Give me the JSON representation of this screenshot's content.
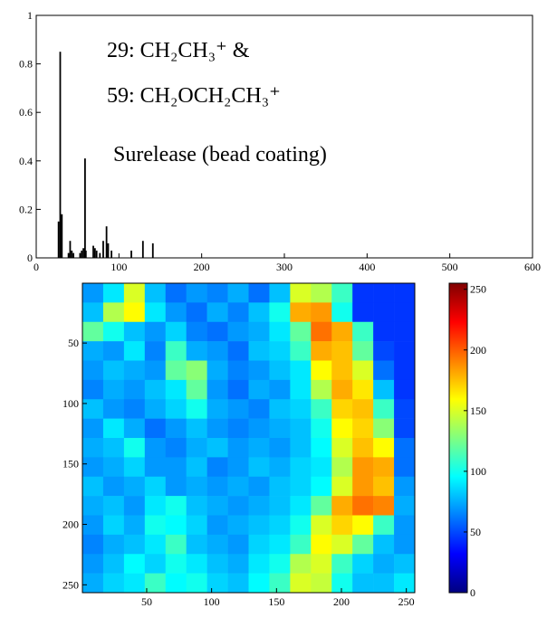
{
  "chart_data": [
    {
      "type": "bar",
      "annotations": [
        "29: CH₂CH₃⁺ &",
        "59: CH₂OCH₂CH₃⁺",
        "Surelease (bead coating)"
      ],
      "x": [
        27,
        29,
        30,
        31,
        39,
        41,
        43,
        45,
        53,
        55,
        57,
        59,
        60,
        69,
        71,
        73,
        77,
        81,
        85,
        87,
        91,
        115,
        129,
        141
      ],
      "values": [
        0.15,
        0.85,
        0.17,
        0.18,
        0.02,
        0.07,
        0.03,
        0.02,
        0.02,
        0.03,
        0.04,
        0.41,
        0.03,
        0.05,
        0.04,
        0.03,
        0.02,
        0.07,
        0.13,
        0.06,
        0.03,
        0.03,
        0.07,
        0.06
      ],
      "color": "#000000",
      "xlim": [
        0,
        600
      ],
      "xticks": [
        0,
        100,
        200,
        300,
        400,
        500,
        600
      ],
      "ylim": [
        0,
        1
      ],
      "yticks": [
        0,
        0.2,
        0.4,
        0.6,
        0.8,
        1
      ]
    },
    {
      "type": "heatmap",
      "colormap": "jet",
      "xlim": [
        0.5,
        256.5
      ],
      "xticks": [
        50,
        100,
        150,
        200,
        250
      ],
      "ylim": [
        256.5,
        0.5
      ],
      "yticks": [
        50,
        100,
        150,
        200,
        250
      ],
      "clim": [
        0,
        255
      ],
      "cticks": [
        0,
        50,
        100,
        150,
        200,
        250
      ],
      "z": [
        [
          70,
          90,
          150,
          80,
          60,
          70,
          65,
          75,
          60,
          80,
          150,
          140,
          110,
          45,
          45,
          45
        ],
        [
          80,
          140,
          160,
          90,
          70,
          60,
          75,
          65,
          80,
          100,
          180,
          185,
          100,
          45,
          45,
          45
        ],
        [
          120,
          100,
          80,
          70,
          85,
          65,
          60,
          70,
          75,
          90,
          120,
          195,
          180,
          110,
          45,
          45
        ],
        [
          75,
          70,
          90,
          65,
          110,
          75,
          70,
          60,
          80,
          85,
          110,
          180,
          175,
          120,
          50,
          45
        ],
        [
          70,
          80,
          75,
          70,
          120,
          130,
          75,
          65,
          70,
          80,
          90,
          160,
          175,
          150,
          60,
          45
        ],
        [
          65,
          75,
          70,
          80,
          90,
          120,
          70,
          60,
          75,
          70,
          90,
          140,
          180,
          165,
          80,
          45
        ],
        [
          80,
          70,
          65,
          75,
          85,
          100,
          75,
          70,
          65,
          80,
          85,
          110,
          170,
          175,
          110,
          50
        ],
        [
          70,
          90,
          75,
          60,
          70,
          80,
          70,
          65,
          70,
          75,
          80,
          100,
          160,
          170,
          130,
          50
        ],
        [
          75,
          80,
          100,
          70,
          65,
          75,
          80,
          70,
          75,
          70,
          80,
          95,
          150,
          175,
          160,
          60
        ],
        [
          70,
          75,
          85,
          70,
          70,
          80,
          65,
          70,
          80,
          75,
          85,
          90,
          140,
          185,
          180,
          60
        ],
        [
          80,
          70,
          75,
          85,
          70,
          75,
          70,
          75,
          70,
          80,
          85,
          95,
          150,
          185,
          175,
          70
        ],
        [
          75,
          80,
          70,
          90,
          100,
          80,
          75,
          70,
          75,
          80,
          90,
          120,
          180,
          195,
          190,
          75
        ],
        [
          70,
          85,
          75,
          100,
          95,
          85,
          70,
          75,
          80,
          85,
          100,
          150,
          170,
          160,
          110,
          70
        ],
        [
          65,
          75,
          80,
          90,
          110,
          80,
          75,
          70,
          85,
          90,
          110,
          160,
          150,
          120,
          80,
          70
        ],
        [
          70,
          80,
          95,
          85,
          100,
          90,
          80,
          75,
          90,
          100,
          140,
          150,
          110,
          85,
          75,
          80
        ],
        [
          75,
          85,
          90,
          110,
          95,
          100,
          85,
          80,
          95,
          110,
          150,
          145,
          100,
          80,
          80,
          90
        ]
      ]
    }
  ]
}
